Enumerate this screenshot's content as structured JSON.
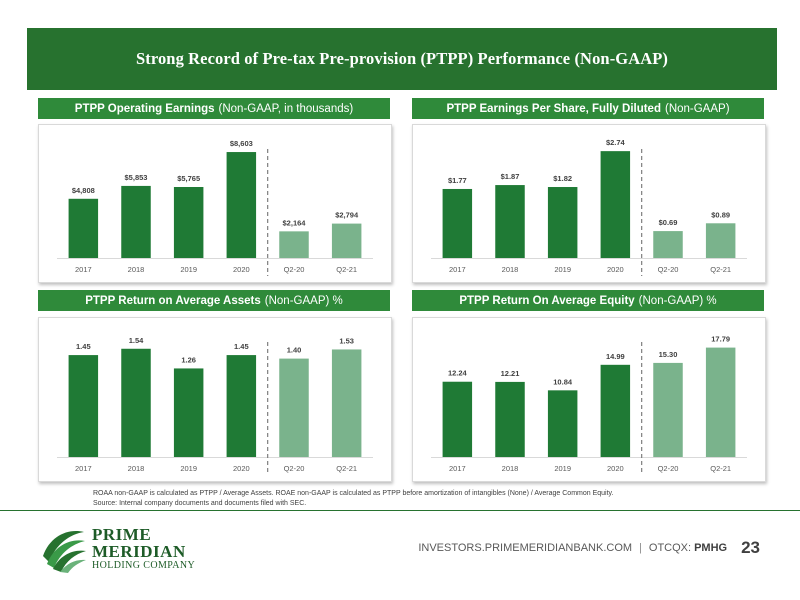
{
  "slide": {
    "title": "Strong Record of Pre-tax Pre-provision (PTPP) Performance (Non-GAAP)",
    "notes_line1": "ROAA non-GAAP is calculated as  PTPP / Average Assets.  ROAE non-GAAP is calculated as PTPP before amortization of intangibles (None) / Average Common Equity.",
    "notes_line2": "Source: Internal company documents and documents filed with SEC.",
    "website": "INVESTORS.PRIMEMERIDIANBANK.COM",
    "separator": "|",
    "exchange": "OTCQX:",
    "ticker": "PMHG",
    "page_number": "23"
  },
  "logo": {
    "line1": "PRIME",
    "line2": "MERIDIAN",
    "line3": "HOLDING COMPANY"
  },
  "colors": {
    "title_bar": "#27722f",
    "header": "#2f8a3a",
    "bar_annual": "#1f7a35",
    "bar_quarter": "#7ab38c",
    "divider": "#7f7f7f"
  },
  "chart_data": [
    {
      "id": "earnings",
      "type": "bar",
      "title": "PTPP Operating Earnings",
      "subtitle": "(Non-GAAP, in thousands)",
      "categories": [
        "2017",
        "2018",
        "2019",
        "2020",
        "Q2-20",
        "Q2-21"
      ],
      "values": [
        4808,
        5853,
        5765,
        8603,
        2164,
        2794
      ],
      "labels": [
        "$4,808",
        "$5,853",
        "$5,765",
        "$8,603",
        "$2,164",
        "$2,794"
      ],
      "quarter_start_index": 4,
      "ylim": [
        0,
        9500
      ],
      "grid": false
    },
    {
      "id": "eps",
      "type": "bar",
      "title": "PTPP Earnings Per Share, Fully Diluted",
      "subtitle": "(Non-GAAP)",
      "categories": [
        "2017",
        "2018",
        "2019",
        "2020",
        "Q2-20",
        "Q2-21"
      ],
      "values": [
        1.77,
        1.87,
        1.82,
        2.74,
        0.69,
        0.89
      ],
      "labels": [
        "$1.77",
        "$1.87",
        "$1.82",
        "$2.74",
        "$0.69",
        "$0.89"
      ],
      "quarter_start_index": 4,
      "ylim": [
        0,
        3.0
      ],
      "grid": false
    },
    {
      "id": "roaa",
      "type": "bar",
      "title": "PTPP Return on Average Assets",
      "subtitle": "(Non-GAAP) %",
      "categories": [
        "2017",
        "2018",
        "2019",
        "2020",
        "Q2-20",
        "Q2-21"
      ],
      "values": [
        1.45,
        1.54,
        1.26,
        1.45,
        1.4,
        1.53
      ],
      "labels": [
        "1.45",
        "1.54",
        "1.26",
        "1.45",
        "1.40",
        "1.53"
      ],
      "quarter_start_index": 4,
      "ylim": [
        0,
        1.75
      ],
      "grid": false
    },
    {
      "id": "roae",
      "type": "bar",
      "title": "PTPP Return On Average Equity",
      "subtitle": "(Non-GAAP) %",
      "categories": [
        "2017",
        "2018",
        "2019",
        "2020",
        "Q2-20",
        "Q2-21"
      ],
      "values": [
        12.24,
        12.21,
        10.84,
        14.99,
        15.3,
        17.79
      ],
      "labels": [
        "12.24",
        "12.21",
        "10.84",
        "14.99",
        "15.30",
        "17.79"
      ],
      "quarter_start_index": 4,
      "ylim": [
        0,
        20
      ],
      "grid": false
    }
  ]
}
